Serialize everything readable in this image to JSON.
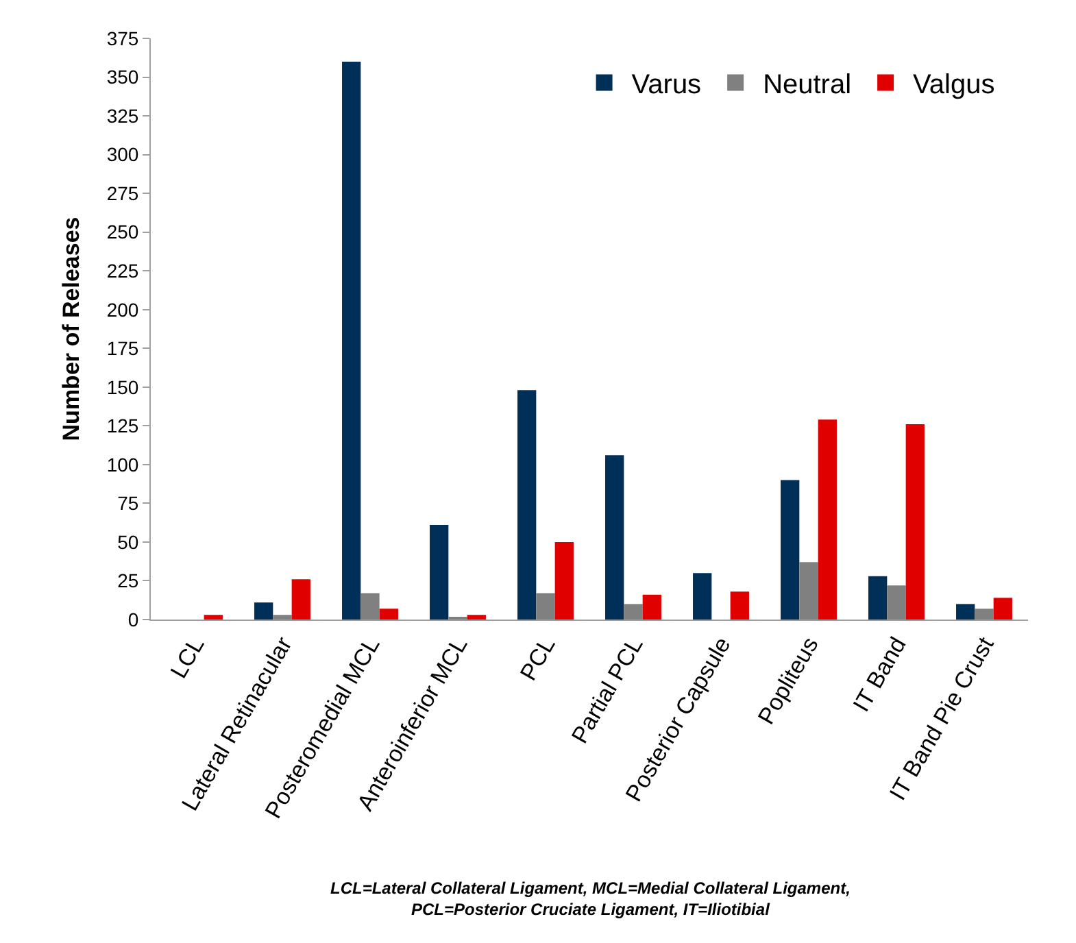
{
  "chart_data": {
    "type": "bar",
    "ylabel": "Number of Releases",
    "categories": [
      "LCL",
      "Lateral Retinacular",
      "Posteromedial MCL",
      "Anteroinferior MCL",
      "PCL",
      "Partial PCL",
      "Posterior Capsule",
      "Popliteus",
      "IT Band",
      "IT Band Pie Crust"
    ],
    "series": [
      {
        "name": "Varus",
        "color": "#003057",
        "values": [
          0,
          11,
          360,
          61,
          148,
          106,
          30,
          90,
          28,
          10
        ]
      },
      {
        "name": "Neutral",
        "color": "#808080",
        "values": [
          0,
          3,
          17,
          1,
          17,
          10,
          0,
          37,
          22,
          7
        ]
      },
      {
        "name": "Valgus",
        "color": "#e00000",
        "values": [
          3,
          26,
          7,
          3,
          50,
          16,
          18,
          129,
          126,
          14
        ]
      }
    ],
    "ylim": [
      0,
      375
    ],
    "yticks": [
      0,
      25,
      50,
      75,
      100,
      125,
      150,
      175,
      200,
      225,
      250,
      275,
      300,
      325,
      350,
      375
    ],
    "legend": "top right",
    "annotations": [
      "LCL=Lateral Collateral Ligament, MCL=Medial Collateral Ligament,\nPCL=Posterior Cruciate Ligament, IT=Iliotibial"
    ]
  }
}
